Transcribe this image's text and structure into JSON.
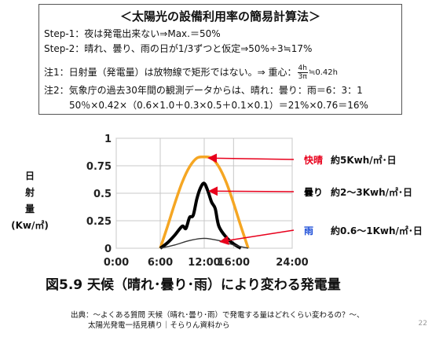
{
  "box": {
    "title": "＜太陽光の設備利用率の簡易計算法＞",
    "step1": "Step-1：夜は発電出来ない⇒Max.＝50%",
    "step2": "Step-2：晴れ、曇り、雨の日が1/3ずつと仮定⇒50%÷3≒17%",
    "note1_prefix": "注1：日射量（発電量）は放物線で矩形ではない。⇒ 重心：",
    "note1_num": "4h",
    "note1_den": "3π",
    "note1_suffix": "≒0.42h",
    "note2_line1": "注2：気象庁の過去30年間の観測データからは、晴れ：曇り：雨＝6：3：1",
    "note2_line2": "50％×0.42×（0.6×1.0＋0.3×0.5＋0.1×0.1）＝21%×0.76＝16%"
  },
  "chart_data": {
    "type": "line",
    "ylabel": "日射量(Kw/㎡)",
    "x_ticks": [
      "0:00",
      "6:00",
      "12:00",
      "16:00",
      "24:00"
    ],
    "x_tick_values": [
      0,
      6,
      12,
      16,
      24
    ],
    "xlim": [
      0,
      24
    ],
    "y_ticks": [
      "0",
      "0.25",
      "0.5",
      "0.75",
      "1"
    ],
    "y_tick_values": [
      0,
      0.25,
      0.5,
      0.75,
      1
    ],
    "ylim": [
      0,
      1
    ],
    "grid": true,
    "series": [
      {
        "name": "快晴",
        "color": "#f5a623",
        "x": [
          6,
          7,
          8,
          9,
          10,
          11,
          12,
          13,
          14,
          15,
          16,
          17,
          18
        ],
        "y": [
          0,
          0.2,
          0.41,
          0.6,
          0.74,
          0.82,
          0.83,
          0.82,
          0.74,
          0.6,
          0.41,
          0.2,
          0
        ]
      },
      {
        "name": "曇り",
        "color": "#000000",
        "x": [
          6,
          7,
          8,
          9,
          9.5,
          10,
          10.5,
          11,
          11.5,
          12,
          12.5,
          13,
          13.5,
          14,
          15,
          16,
          17
        ],
        "y": [
          0,
          0.05,
          0.12,
          0.2,
          0.18,
          0.28,
          0.3,
          0.45,
          0.55,
          0.59,
          0.52,
          0.42,
          0.36,
          0.2,
          0.1,
          0.04,
          0
        ]
      },
      {
        "name": "雨",
        "color": "#333333",
        "x": [
          6,
          8,
          10,
          12,
          14,
          16,
          18
        ],
        "y": [
          0,
          0.03,
          0.07,
          0.09,
          0.07,
          0.03,
          0
        ]
      }
    ],
    "annotations": [
      {
        "label": "快晴",
        "value": "約5Kwh/㎡･日",
        "label_color": "#e8001c"
      },
      {
        "label": "曇り",
        "value": "約2～3Kwh/㎡･日",
        "label_color": "#000000"
      },
      {
        "label": "雨",
        "value": "約0.6～1Kwh/㎡･日",
        "label_color": "#1e4fd8"
      }
    ],
    "arrow_color": "#e8001c"
  },
  "caption": "図5.9 天候（晴れ･曇り･雨）により変わる発電量",
  "source_line1": "出典：～よくある質問 天候（晴れ･曇り･雨）で発電する量はどれくらい変わるの？～、",
  "source_line2": "太陽光発電一括見積り｜そらりん資料から",
  "page_number": "22"
}
